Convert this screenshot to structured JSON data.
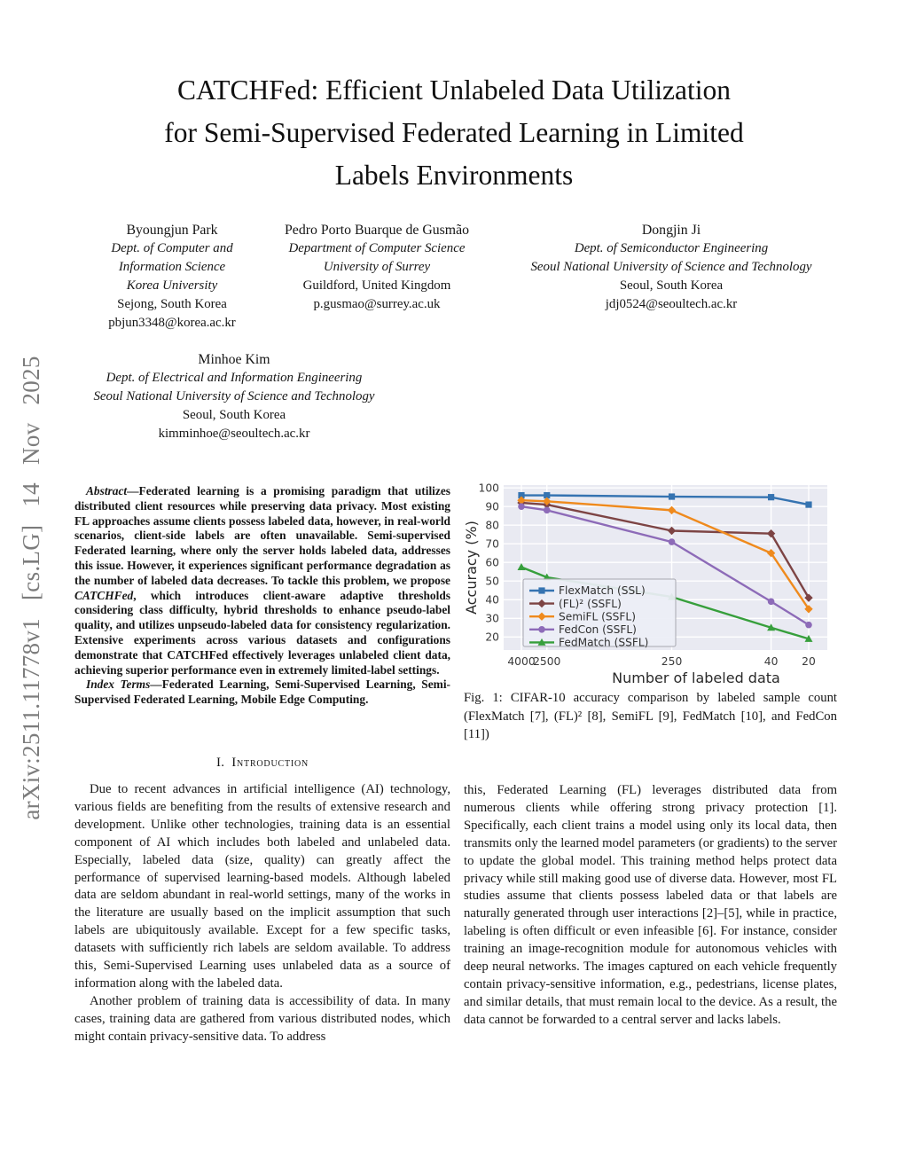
{
  "watermark": {
    "text": "arXiv:2511.11778v1 [cs.LG] 14 Nov 2025"
  },
  "title": {
    "lines": [
      "CATCHFed: Efficient Unlabeled Data Utilization",
      "for Semi-Supervised Federated Learning in Limited",
      "Labels Environments"
    ]
  },
  "authors": [
    {
      "name": "Byoungjun Park",
      "dept_lines": [
        "Dept. of Computer and",
        "Information Science",
        "Korea University"
      ],
      "city": "Sejong, South Korea",
      "email": "pbjun3348@korea.ac.kr"
    },
    {
      "name": "Pedro Porto Buarque de Gusmão",
      "dept_lines": [
        "Department of Computer Science",
        "University of Surrey"
      ],
      "city": "Guildford, United Kingdom",
      "email": "p.gusmao@surrey.ac.uk"
    },
    {
      "name": "Dongjin Ji",
      "dept_lines": [
        "Dept. of Semiconductor Engineering",
        "Seoul National University of Science and Technology"
      ],
      "city": "Seoul, South Korea",
      "email": "jdj0524@seoultech.ac.kr"
    },
    {
      "name": "Minhoe Kim",
      "dept_lines": [
        "Dept. of Electrical and Information Engineering",
        "Seoul National University of Science and Technology"
      ],
      "city": "Seoul, South Korea",
      "email": "kimminhoe@seoultech.ac.kr"
    }
  ],
  "abstract": {
    "lead": "Abstract",
    "body_pre": "—Federated learning is a promising paradigm that utilizes distributed client resources while preserving data privacy. Most existing FL approaches assume clients possess labeled data, however, in real-world scenarios, client-side labels are often unavailable. Semi-supervised Federated learning, where only the server holds labeled data, addresses this issue. However, it experiences significant performance degradation as the number of labeled data decreases. To tackle this problem, we propose ",
    "emph": "CATCHFed",
    "body_post": ", which introduces client-aware adaptive thresholds considering class difficulty, hybrid thresholds to enhance pseudo-label quality, and utilizes unpseudo-labeled data for consistency regularization. Extensive experiments across various datasets and configurations demonstrate that CATCHFed effectively leverages unlabeled client data, achieving superior performance even in extremely limited-label settings."
  },
  "index_terms": {
    "lead": "Index Terms",
    "body": "—Federated Learning, Semi-Supervised Learning, Semi-Supervised Federated Learning, Mobile Edge Computing."
  },
  "section1": {
    "label": "I.",
    "title": "Introduction"
  },
  "intro": {
    "p1": "Due to recent advances in artificial intelligence (AI) technology, various fields are benefiting from the results of extensive research and development. Unlike other technologies, training data is an essential component of AI which includes both labeled and unlabeled data. Especially, labeled data (size, quality) can greatly affect the performance of supervised learning-based models. Although labeled data are seldom abundant in real-world settings, many of the works in the literature are usually based on the implicit assumption that such labels are ubiquitously available. Except for a few specific tasks, datasets with sufficiently rich labels are seldom available. To address this, Semi-Supervised Learning uses unlabeled data as a source of information along with the labeled data.",
    "p2": "Another problem of training data is accessibility of data. In many cases, training data are gathered from various distributed nodes, which might contain privacy-sensitive data. To address",
    "p3": "this, Federated Learning (FL) leverages distributed data from numerous clients while offering strong privacy protection [1]. Specifically, each client trains a model using only its local data, then transmits only the learned model parameters (or gradients) to the server to update the global model. This training method helps protect data privacy while still making good use of diverse data. However, most FL studies assume that clients possess labeled data or that labels are naturally generated through user interactions [2]–[5], while in practice, labeling is often difficult or even infeasible [6]. For instance, consider training an image-recognition module for autonomous vehicles with deep neural networks. The images captured on each vehicle frequently contain privacy-sensitive information, e.g., pedestrians, license plates, and similar details, that must remain local to the device. As a result, the data cannot be forwarded to a central server and lacks labels."
  },
  "figure1": {
    "caption": "Fig. 1: CIFAR-10 accuracy comparison by labeled sample count (FlexMatch [7], (FL)² [8], SemiFL [9], FedMatch [10], and FedCon [11])"
  },
  "chart_data": {
    "type": "line",
    "title": "",
    "xlabel": "Number of labeled data",
    "ylabel": "Accuracy (%)",
    "x": [
      4000,
      2500,
      250,
      40,
      20
    ],
    "x_scale": "log-reversed",
    "ylim": [
      13,
      101.5
    ],
    "yticks": [
      20,
      30,
      40,
      50,
      60,
      70,
      80,
      90,
      100
    ],
    "grid": true,
    "background": "#e9eaf2",
    "grid_color": "#ffffff",
    "legend_position": "lower-left",
    "series": [
      {
        "name": "FlexMatch (SSL)",
        "color": "#3573b1",
        "marker": "square",
        "values": [
          96,
          96,
          95.3,
          95,
          91
        ]
      },
      {
        "name": "(FL)² (SSFL)",
        "color": "#7d4444",
        "marker": "diamond",
        "values": [
          92,
          91,
          77,
          75.5,
          41
        ]
      },
      {
        "name": "SemiFL (SSFL)",
        "color": "#ef8a1d",
        "marker": "diamond",
        "values": [
          93.3,
          92.8,
          88,
          65,
          35
        ]
      },
      {
        "name": "FedCon (SSFL)",
        "color": "#8d6bb8",
        "marker": "circle",
        "values": [
          90,
          88,
          71,
          39,
          26.5
        ]
      },
      {
        "name": "FedMatch (SSFL)",
        "color": "#379f3c",
        "marker": "triangle",
        "values": [
          57.5,
          52,
          41.5,
          25,
          19
        ]
      }
    ]
  }
}
